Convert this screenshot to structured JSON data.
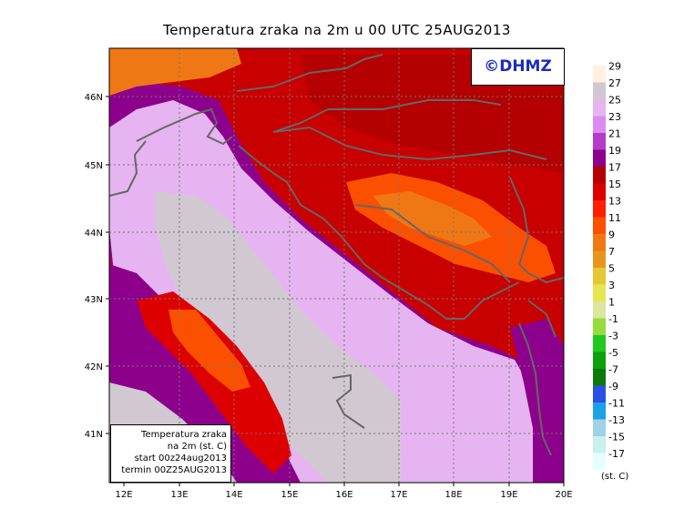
{
  "title": "Temperatura zraka na 2m u 00 UTC 25AUG2013",
  "logo": "©DHMZ",
  "info_box": {
    "line1": "Temperatura zraka",
    "line2": "na 2m (st. C)",
    "line3": "start 00z24aug2013",
    "line4": "termin 00Z25AUG2013"
  },
  "unit_label": "(st. C)",
  "lon_ticks": [
    "12E",
    "13E",
    "14E",
    "15E",
    "16E",
    "17E",
    "18E",
    "19E",
    "20E"
  ],
  "lat_ticks": [
    "46N",
    "45N",
    "44N",
    "43N",
    "42N",
    "41N"
  ],
  "legend": {
    "colors": [
      "#e6ffff",
      "#c8f0f0",
      "#a0d2e6",
      "#1ea0e6",
      "#2850e6",
      "#0a7a0a",
      "#0ca00c",
      "#20c820",
      "#96dc3c",
      "#dce6a0",
      "#e6e650",
      "#e6c832",
      "#e6961e",
      "#f07814",
      "#fa5000",
      "#ff1e00",
      "#dc0000",
      "#b40000",
      "#8c008c",
      "#b43cc8",
      "#dc8cf0",
      "#e6b4f0",
      "#d2c8d2",
      "#fff0e0"
    ],
    "labels": [
      "-17",
      "-15",
      "-13",
      "-11",
      "-9",
      "-7",
      "-5",
      "-3",
      "-1",
      "1",
      "3",
      "5",
      "7",
      "9",
      "11",
      "13",
      "15",
      "17",
      "19",
      "21",
      "23",
      "25",
      "27",
      "29"
    ]
  }
}
